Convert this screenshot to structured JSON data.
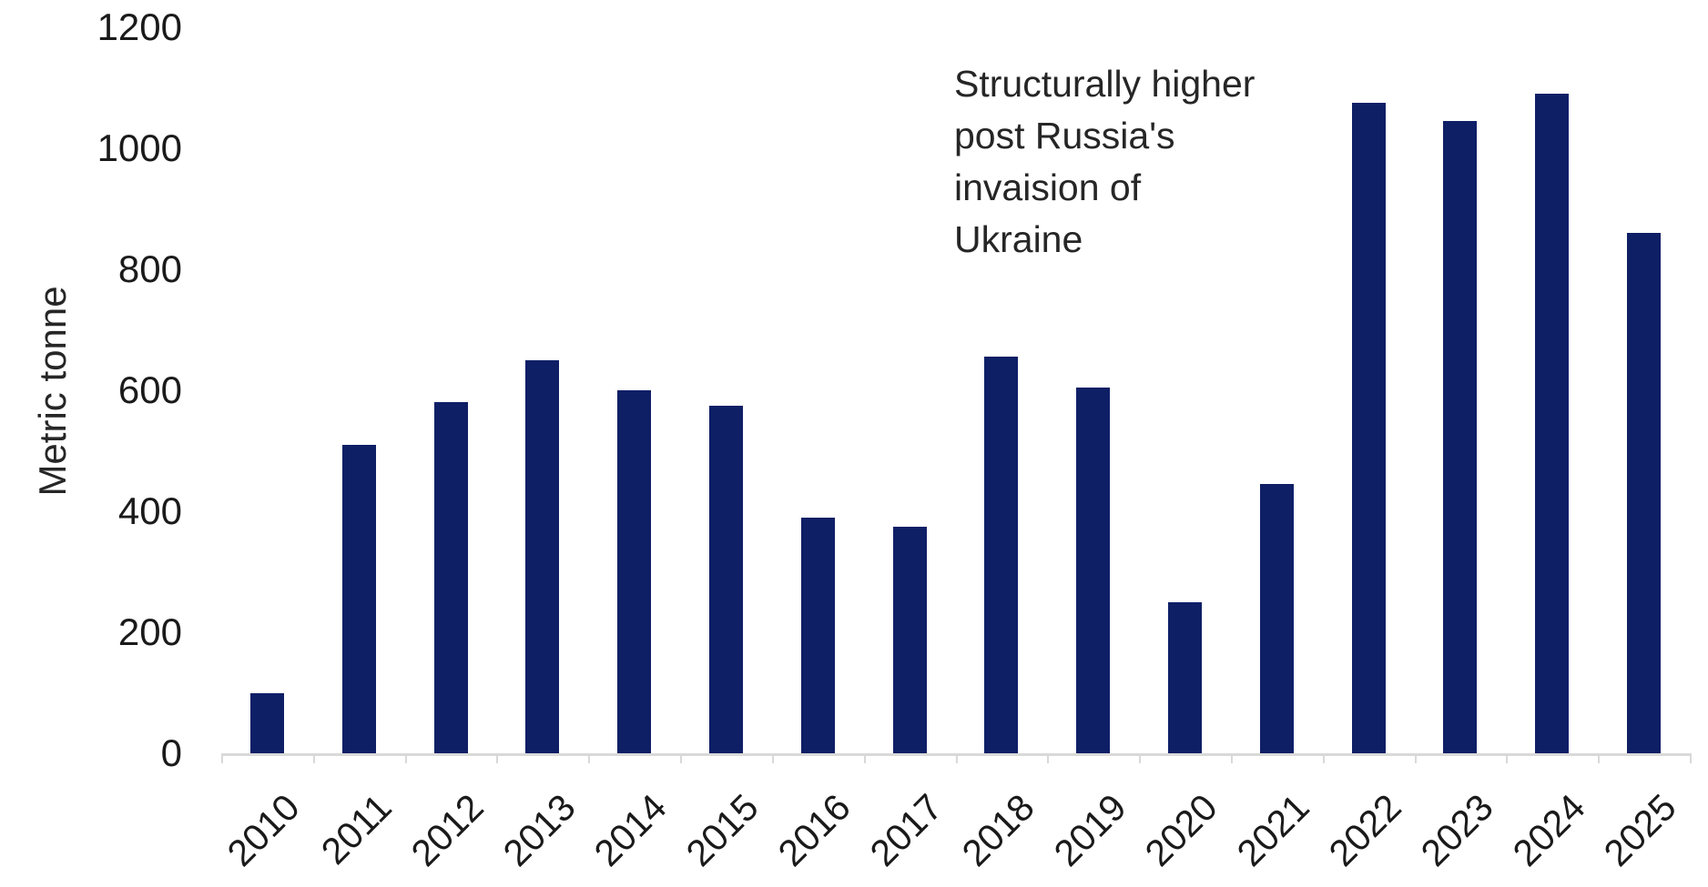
{
  "chart_data": {
    "type": "bar",
    "title": "",
    "categories": [
      "2010",
      "2011",
      "2012",
      "2013",
      "2014",
      "2015",
      "2016",
      "2017",
      "2018",
      "2019",
      "2020",
      "2021",
      "2022",
      "2023",
      "2024",
      "2025"
    ],
    "values": [
      100,
      510,
      580,
      650,
      600,
      575,
      390,
      375,
      655,
      605,
      250,
      445,
      1075,
      1045,
      1090,
      860
    ],
    "xlabel": "",
    "ylabel": "Metric tonne",
    "ylim": [
      0,
      1200
    ],
    "yticks": [
      0,
      200,
      400,
      600,
      800,
      1000,
      1200
    ],
    "grid": false,
    "legend": null,
    "annotation_lines": [
      "Structurally higher",
      "post Russia's",
      "invaision of",
      "Ukraine"
    ],
    "colors": {
      "bar": "#0e1f66",
      "axis": "#d9d9d9",
      "tick_text": "#1a1a1a",
      "annotation_text": "#262626"
    }
  }
}
